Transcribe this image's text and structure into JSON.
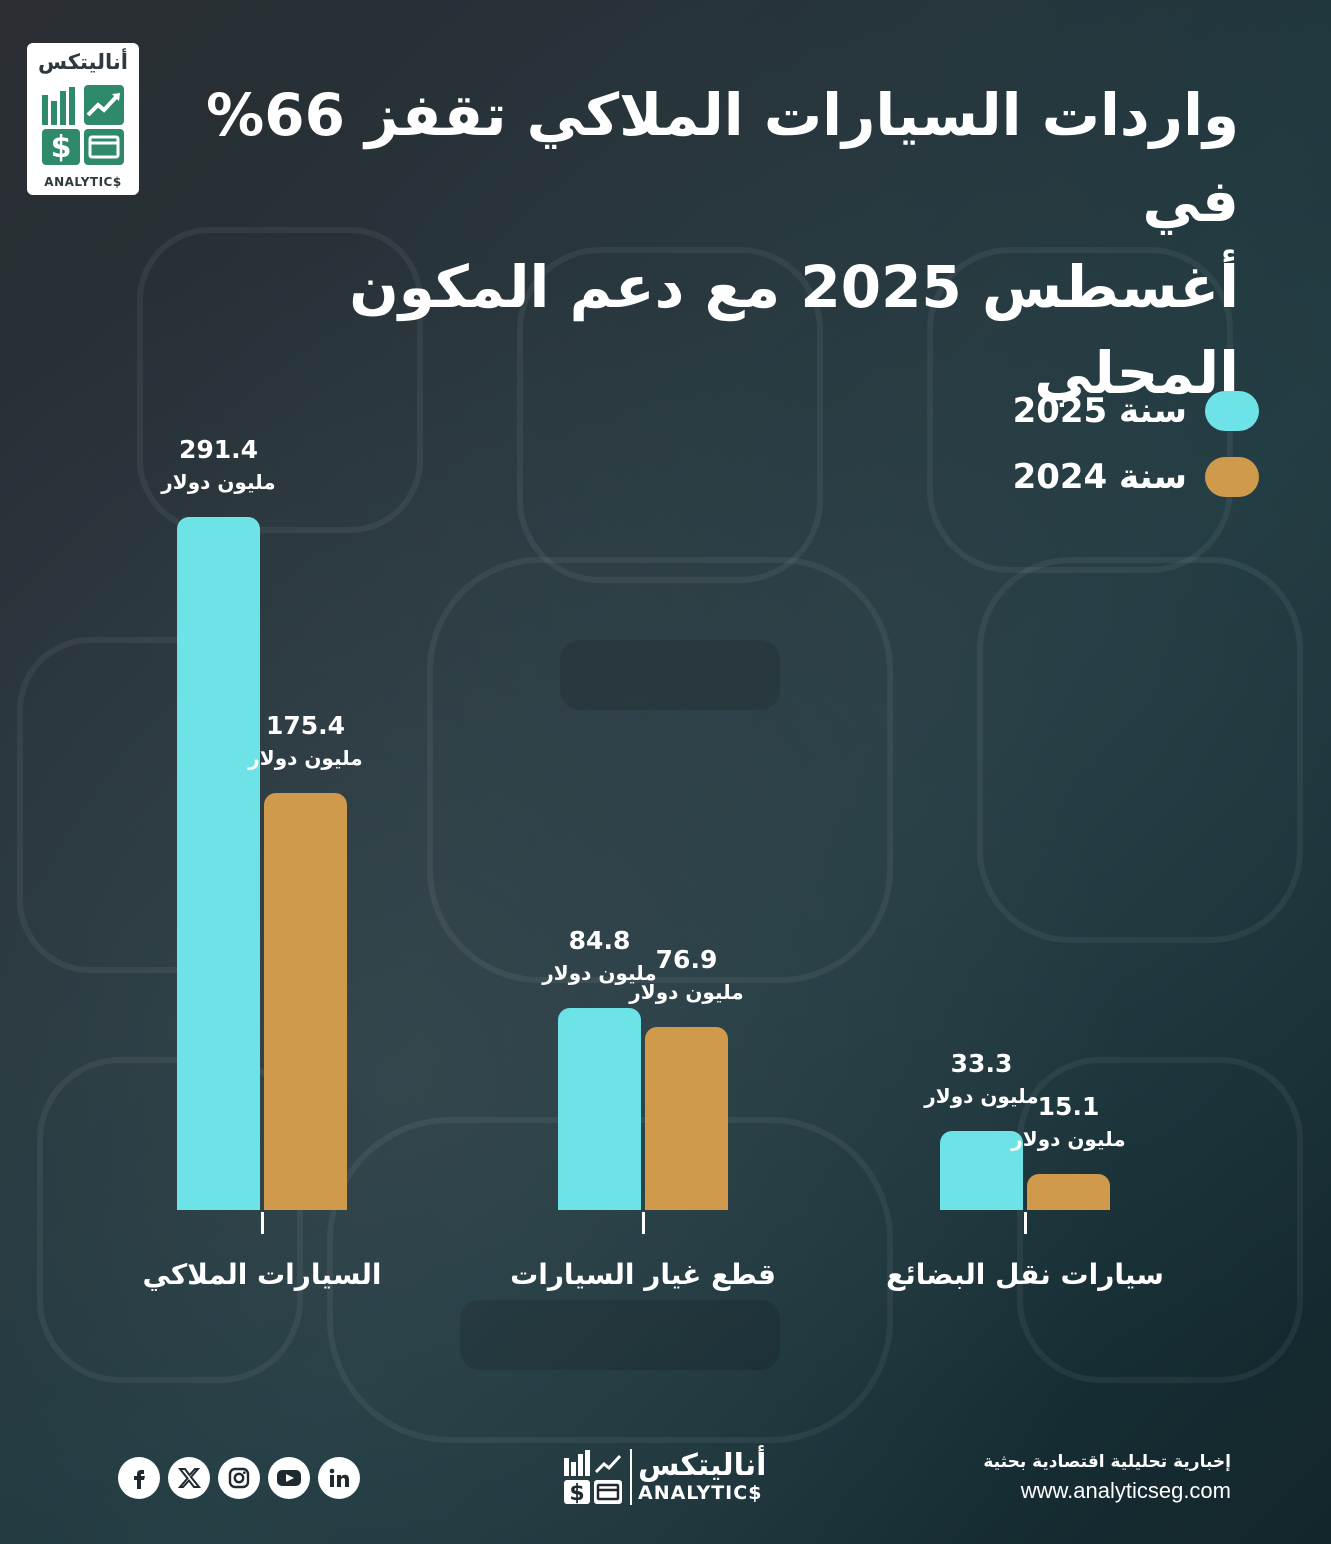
{
  "logo": {
    "arabic": "أناليتكس",
    "english": "ANALYTIC$"
  },
  "title": {
    "line1": "واردات السيارات الملاكي تقفز 66% في",
    "line2": "أغسطس 2025 مع دعم المكون المحلي"
  },
  "legend": [
    {
      "label": "سنة 2025",
      "color": "#6de3e8"
    },
    {
      "label": "سنة 2024",
      "color": "#cf9a4c"
    }
  ],
  "chart_data": {
    "type": "bar",
    "categories": [
      "السيارات الملاكي",
      "قطع غيار السيارات",
      "سيارات نقل البضائع"
    ],
    "series": [
      {
        "name": "سنة 2025",
        "values": [
          291.4,
          84.8,
          33.3
        ],
        "color": "#6de3e8"
      },
      {
        "name": "سنة 2024",
        "values": [
          175.4,
          76.9,
          15.1
        ],
        "color": "#cf9a4c"
      }
    ],
    "value_labels": {
      "2025": [
        "291.4",
        "84.8",
        "33.3"
      ],
      "2024": [
        "175.4",
        "76.9",
        "15.1"
      ]
    },
    "unit": "مليون دولار"
  },
  "footer": {
    "tagline": "إخبارية تحليلية اقتصادية بحثية",
    "website": "www.analyticseg.com",
    "social_icons": [
      "facebook-icon",
      "x-icon",
      "instagram-icon",
      "youtube-icon",
      "linkedin-icon"
    ]
  }
}
